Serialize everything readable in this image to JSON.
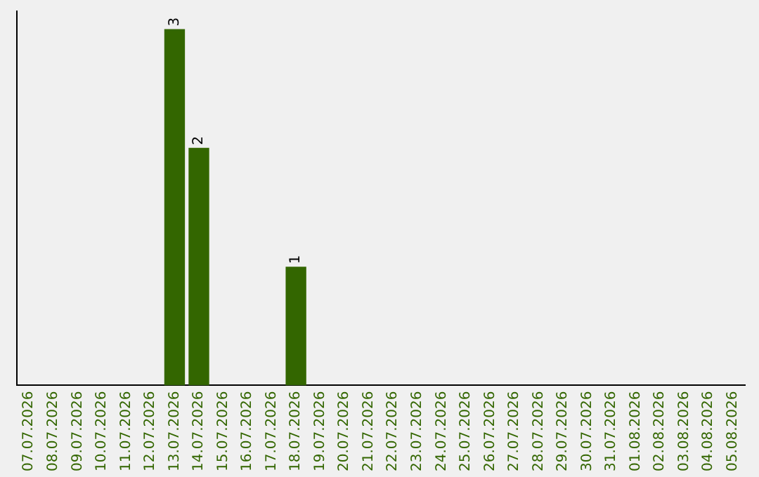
{
  "chart_data": {
    "type": "bar",
    "categories": [
      "07.07.2026",
      "08.07.2026",
      "09.07.2026",
      "10.07.2026",
      "11.07.2026",
      "12.07.2026",
      "13.07.2026",
      "14.07.2026",
      "15.07.2026",
      "16.07.2026",
      "17.07.2026",
      "18.07.2026",
      "19.07.2026",
      "20.07.2026",
      "21.07.2026",
      "22.07.2026",
      "23.07.2026",
      "24.07.2026",
      "25.07.2026",
      "26.07.2026",
      "27.07.2026",
      "28.07.2026",
      "29.07.2026",
      "30.07.2026",
      "31.07.2026",
      "01.08.2026",
      "02.08.2026",
      "03.08.2026",
      "04.08.2026",
      "05.08.2026"
    ],
    "values": [
      0,
      0,
      0,
      0,
      0,
      0,
      3,
      2,
      0,
      0,
      0,
      1,
      0,
      0,
      0,
      0,
      0,
      0,
      0,
      0,
      0,
      0,
      0,
      0,
      0,
      0,
      0,
      0,
      0,
      0
    ],
    "value_labels": [
      null,
      null,
      null,
      null,
      null,
      null,
      "3",
      "2",
      null,
      null,
      null,
      "1",
      null,
      null,
      null,
      null,
      null,
      null,
      null,
      null,
      null,
      null,
      null,
      null,
      null,
      null,
      null,
      null,
      null,
      null
    ],
    "color": "#336600",
    "tick_labels": "x",
    "grid": false,
    "legend": false
  }
}
